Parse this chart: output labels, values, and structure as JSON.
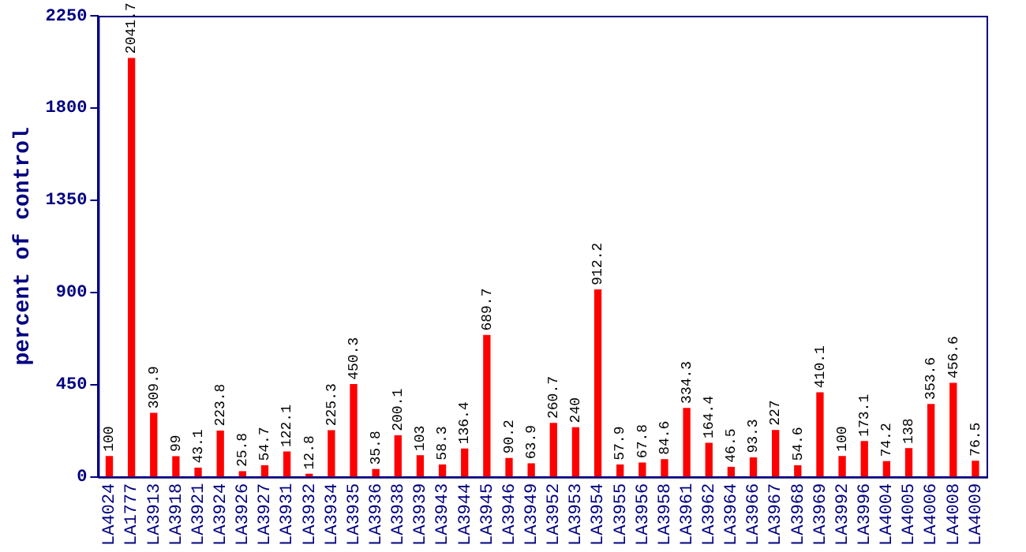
{
  "chart_data": {
    "type": "bar",
    "ylabel": "percent of control",
    "categories": [
      "LA4024",
      "LA1777",
      "LA3913",
      "LA3918",
      "LA3921",
      "LA3924",
      "LA3926",
      "LA3927",
      "LA3931",
      "LA3932",
      "LA3934",
      "LA3935",
      "LA3936",
      "LA3938",
      "LA3939",
      "LA3943",
      "LA3944",
      "LA3945",
      "LA3946",
      "LA3949",
      "LA3952",
      "LA3953",
      "LA3954",
      "LA3955",
      "LA3956",
      "LA3958",
      "LA3961",
      "LA3962",
      "LA3964",
      "LA3966",
      "LA3967",
      "LA3968",
      "LA3969",
      "LA3992",
      "LA3996",
      "LA4004",
      "LA4005",
      "LA4006",
      "LA4008",
      "LA4009"
    ],
    "values": [
      100,
      2041.7,
      309.9,
      99,
      43.1,
      223.8,
      25.8,
      54.7,
      122.1,
      12.8,
      225.3,
      450.3,
      35.8,
      200.1,
      103,
      58.3,
      136.4,
      689.7,
      90.2,
      63.9,
      260.7,
      240,
      912.2,
      57.9,
      67.8,
      84.6,
      334.3,
      164.4,
      46.5,
      93.3,
      227,
      54.6,
      410.1,
      100,
      173.1,
      74.2,
      138,
      353.6,
      456.6,
      76.5
    ],
    "color": "#ff0000",
    "ylim": [
      0,
      2250
    ],
    "yticks": [
      0,
      450,
      900,
      1350,
      1800,
      2250
    ],
    "data_labels": true,
    "grid": false,
    "legend": false
  }
}
